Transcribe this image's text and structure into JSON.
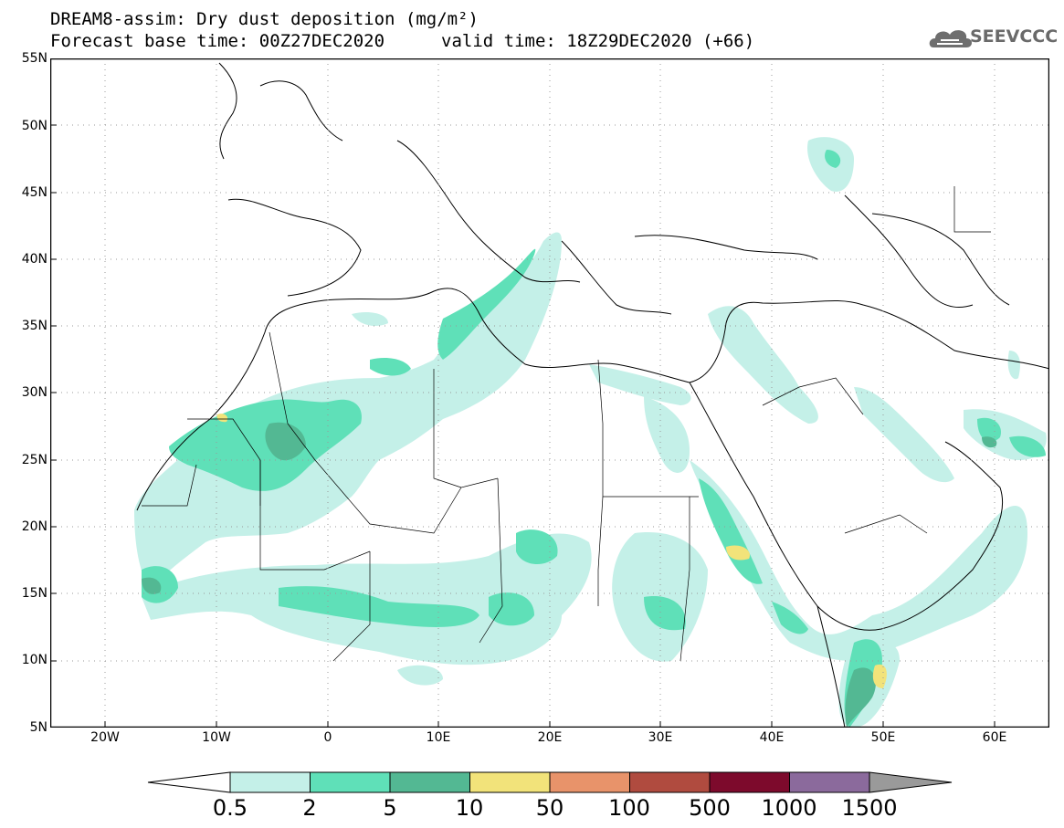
{
  "header": {
    "title": "DREAM8-assim: Dry dust deposition (mg/m²)",
    "base_time": "Forecast base time: 00Z27DEC2020",
    "valid_time": "valid time: 18Z29DEC2020 (+66)",
    "logo_text": "SEEVCCC"
  },
  "map": {
    "latitude_labels": [
      "55N",
      "50N",
      "45N",
      "40N",
      "35N",
      "30N",
      "25N",
      "20N",
      "15N",
      "10N",
      "5N"
    ],
    "longitude_labels": [
      "20W",
      "10W",
      "0",
      "10E",
      "20E",
      "30E",
      "40E",
      "50E",
      "60E"
    ],
    "extent": {
      "lon": [
        -25,
        65
      ],
      "lat": [
        5,
        55
      ]
    },
    "grid": "dotted"
  },
  "legend": {
    "labels": [
      "0.5",
      "2",
      "5",
      "10",
      "50",
      "100",
      "500",
      "1000",
      "1500"
    ],
    "colors": [
      "#ffffff",
      "#c4f0e8",
      "#5fe0b8",
      "#53b893",
      "#f2e37a",
      "#e8936a",
      "#b04b3f",
      "#7d0a2c",
      "#8b6a9c",
      "#9a9a9a"
    ]
  }
}
